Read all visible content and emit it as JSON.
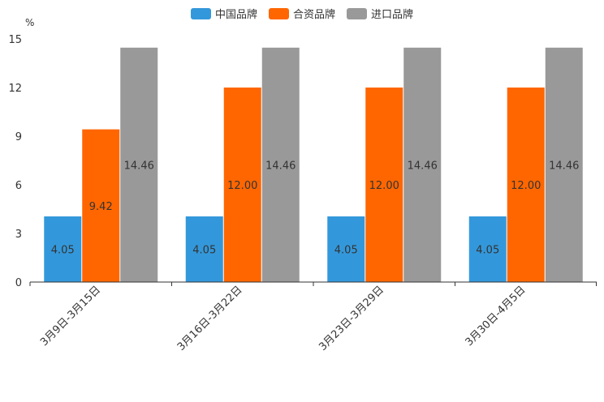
{
  "chart_data": {
    "type": "bar",
    "unit_label": "%",
    "categories": [
      "3月9日-3月15日",
      "3月16日-3月22日",
      "3月23日-3月29日",
      "3月30日-4月5日"
    ],
    "series": [
      {
        "name": "中国品牌",
        "color": "#3398DB",
        "values": [
          4.05,
          4.05,
          4.05,
          4.05
        ],
        "labels": [
          "4.05",
          "4.05",
          "4.05",
          "4.05"
        ]
      },
      {
        "name": "合资品牌",
        "color": "#FF6600",
        "values": [
          9.42,
          12.0,
          12.0,
          12.0
        ],
        "labels": [
          "9.42",
          "12.00",
          "12.00",
          "12.00"
        ]
      },
      {
        "name": "进口品牌",
        "color": "#999999",
        "values": [
          14.46,
          14.46,
          14.46,
          14.46
        ],
        "labels": [
          "14.46",
          "14.46",
          "14.46",
          "14.46"
        ]
      }
    ],
    "ylim": [
      0,
      15
    ],
    "yticks": [
      "0",
      "3",
      "6",
      "9",
      "12",
      "15"
    ],
    "grid": false,
    "legend": "top-center"
  }
}
